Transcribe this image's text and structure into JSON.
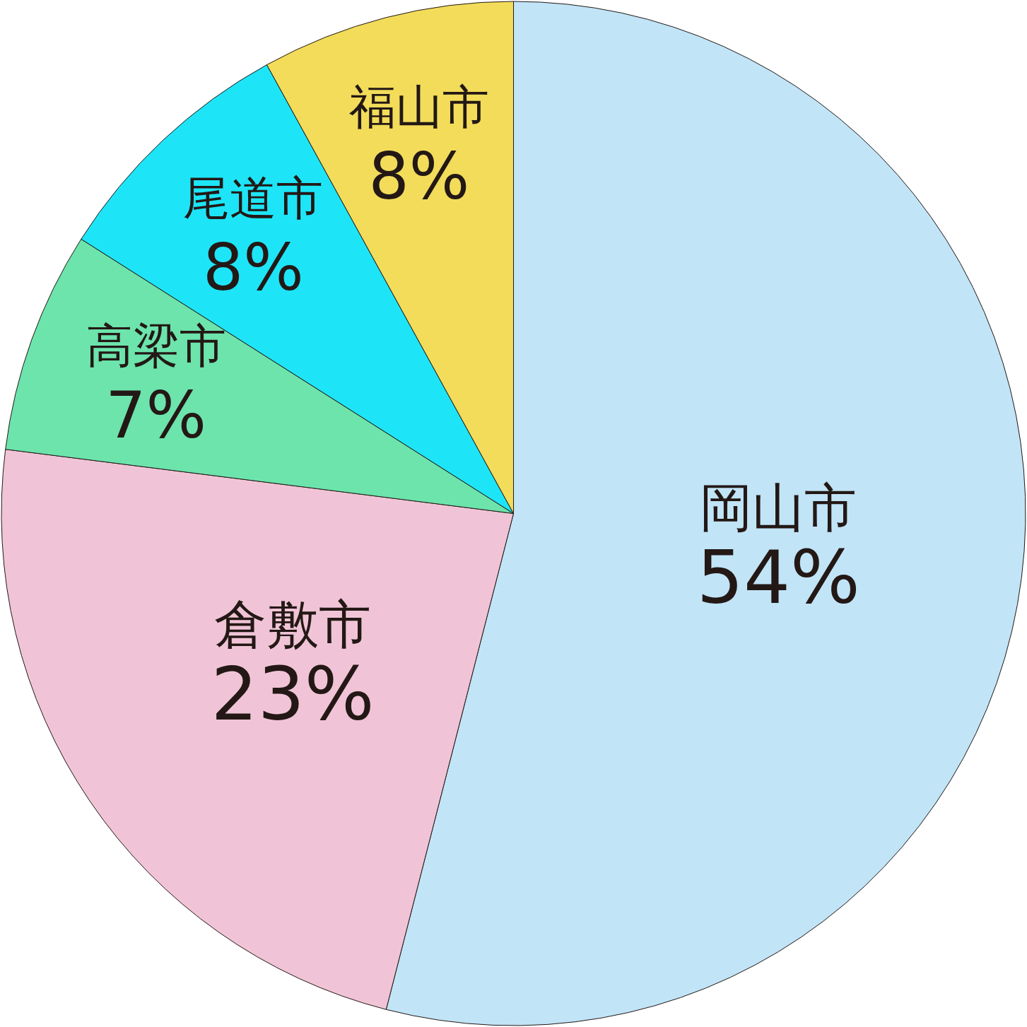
{
  "chart_data": {
    "type": "pie",
    "categories": [
      "岡山市",
      "倉敷市",
      "高梁市",
      "尾道市",
      "福山市"
    ],
    "values": [
      54,
      23,
      7,
      8,
      8
    ],
    "value_labels": [
      "54%",
      "23%",
      "7%",
      "8%",
      "8%"
    ],
    "colors": [
      "#c1e4f7",
      "#f0c4d6",
      "#6ce4ac",
      "#1de5f7",
      "#f2dc5a"
    ],
    "legend": false
  }
}
